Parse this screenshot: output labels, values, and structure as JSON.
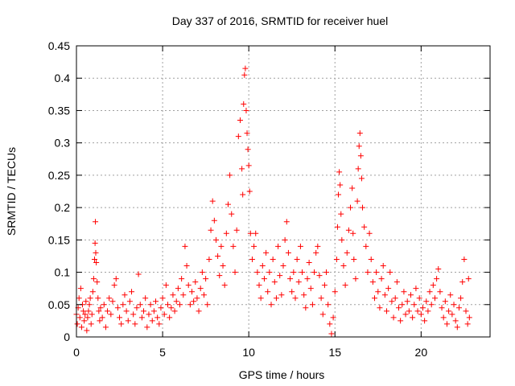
{
  "chart_data": {
    "type": "scatter",
    "title": "Day 337 of 2016, SRMTID for receiver huel",
    "xlabel": "GPS time / hours",
    "ylabel": "SRMTID / TECUs",
    "xlim": [
      0,
      24
    ],
    "ylim": [
      0,
      0.45
    ],
    "xticks": [
      0,
      5,
      10,
      15,
      20
    ],
    "yticks": [
      0,
      0.05,
      0.1,
      0.15,
      0.2,
      0.25,
      0.3,
      0.35,
      0.4,
      0.45
    ],
    "xtick_labels": [
      "0",
      "5",
      "10",
      "15",
      "20"
    ],
    "ytick_labels": [
      "0",
      "0.05",
      "0.1",
      "0.15",
      "0.2",
      "0.25",
      "0.3",
      "0.35",
      "0.4",
      "0.45"
    ],
    "grid": true,
    "marker": "+",
    "color": "#ff0000",
    "series": [
      {
        "name": "SRMTID",
        "points": [
          [
            0.0,
            0.035
          ],
          [
            0.05,
            0.02
          ],
          [
            0.1,
            0.045
          ],
          [
            0.15,
            0.06
          ],
          [
            0.2,
            0.03
          ],
          [
            0.25,
            0.075
          ],
          [
            0.3,
            0.015
          ],
          [
            0.35,
            0.05
          ],
          [
            0.4,
            0.04
          ],
          [
            0.45,
            0.025
          ],
          [
            0.5,
            0.035
          ],
          [
            0.55,
            0.055
          ],
          [
            0.6,
            0.01
          ],
          [
            0.65,
            0.03
          ],
          [
            0.7,
            0.04
          ],
          [
            0.75,
            0.05
          ],
          [
            0.8,
            0.06
          ],
          [
            0.85,
            0.02
          ],
          [
            0.9,
            0.035
          ],
          [
            0.95,
            0.07
          ],
          [
            1.0,
            0.09
          ],
          [
            1.05,
            0.12
          ],
          [
            1.08,
            0.145
          ],
          [
            1.1,
            0.178
          ],
          [
            1.12,
            0.13
          ],
          [
            1.15,
            0.115
          ],
          [
            1.2,
            0.085
          ],
          [
            1.25,
            0.06
          ],
          [
            1.3,
            0.04
          ],
          [
            1.35,
            0.025
          ],
          [
            1.4,
            0.045
          ],
          [
            1.5,
            0.03
          ],
          [
            1.6,
            0.05
          ],
          [
            1.7,
            0.015
          ],
          [
            1.8,
            0.04
          ],
          [
            1.9,
            0.06
          ],
          [
            2.0,
            0.035
          ],
          [
            2.1,
            0.055
          ],
          [
            2.2,
            0.08
          ],
          [
            2.3,
            0.09
          ],
          [
            2.4,
            0.045
          ],
          [
            2.5,
            0.03
          ],
          [
            2.6,
            0.02
          ],
          [
            2.7,
            0.05
          ],
          [
            2.8,
            0.065
          ],
          [
            2.9,
            0.04
          ],
          [
            3.0,
            0.025
          ],
          [
            3.1,
            0.055
          ],
          [
            3.2,
            0.07
          ],
          [
            3.3,
            0.035
          ],
          [
            3.4,
            0.02
          ],
          [
            3.5,
            0.045
          ],
          [
            3.6,
            0.097
          ],
          [
            3.7,
            0.05
          ],
          [
            3.8,
            0.03
          ],
          [
            3.9,
            0.04
          ],
          [
            4.0,
            0.06
          ],
          [
            4.1,
            0.015
          ],
          [
            4.2,
            0.035
          ],
          [
            4.3,
            0.05
          ],
          [
            4.4,
            0.025
          ],
          [
            4.5,
            0.04
          ],
          [
            4.6,
            0.055
          ],
          [
            4.7,
            0.03
          ],
          [
            4.8,
            0.02
          ],
          [
            4.9,
            0.045
          ],
          [
            5.0,
            0.06
          ],
          [
            5.1,
            0.035
          ],
          [
            5.2,
            0.08
          ],
          [
            5.3,
            0.05
          ],
          [
            5.4,
            0.03
          ],
          [
            5.5,
            0.045
          ],
          [
            5.6,
            0.065
          ],
          [
            5.7,
            0.04
          ],
          [
            5.8,
            0.055
          ],
          [
            5.9,
            0.075
          ],
          [
            6.0,
            0.05
          ],
          [
            6.1,
            0.09
          ],
          [
            6.2,
            0.065
          ],
          [
            6.3,
            0.14
          ],
          [
            6.4,
            0.11
          ],
          [
            6.5,
            0.08
          ],
          [
            6.6,
            0.05
          ],
          [
            6.7,
            0.07
          ],
          [
            6.8,
            0.055
          ],
          [
            6.9,
            0.085
          ],
          [
            7.0,
            0.06
          ],
          [
            7.1,
            0.04
          ],
          [
            7.2,
            0.075
          ],
          [
            7.3,
            0.1
          ],
          [
            7.4,
            0.065
          ],
          [
            7.5,
            0.09
          ],
          [
            7.6,
            0.05
          ],
          [
            7.7,
            0.12
          ],
          [
            7.8,
            0.165
          ],
          [
            7.9,
            0.21
          ],
          [
            8.0,
            0.18
          ],
          [
            8.1,
            0.15
          ],
          [
            8.2,
            0.125
          ],
          [
            8.3,
            0.095
          ],
          [
            8.4,
            0.14
          ],
          [
            8.5,
            0.11
          ],
          [
            8.6,
            0.08
          ],
          [
            8.7,
            0.16
          ],
          [
            8.8,
            0.205
          ],
          [
            8.9,
            0.25
          ],
          [
            9.0,
            0.19
          ],
          [
            9.1,
            0.14
          ],
          [
            9.2,
            0.1
          ],
          [
            9.3,
            0.165
          ],
          [
            9.4,
            0.31
          ],
          [
            9.5,
            0.335
          ],
          [
            9.6,
            0.26
          ],
          [
            9.65,
            0.22
          ],
          [
            9.7,
            0.36
          ],
          [
            9.75,
            0.405
          ],
          [
            9.8,
            0.415
          ],
          [
            9.85,
            0.35
          ],
          [
            9.9,
            0.315
          ],
          [
            9.95,
            0.29
          ],
          [
            10.0,
            0.265
          ],
          [
            10.05,
            0.225
          ],
          [
            10.1,
            0.16
          ],
          [
            10.2,
            0.12
          ],
          [
            10.3,
            0.14
          ],
          [
            10.4,
            0.16
          ],
          [
            10.5,
            0.1
          ],
          [
            10.6,
            0.08
          ],
          [
            10.7,
            0.06
          ],
          [
            10.8,
            0.11
          ],
          [
            10.9,
            0.09
          ],
          [
            11.0,
            0.13
          ],
          [
            11.1,
            0.07
          ],
          [
            11.2,
            0.1
          ],
          [
            11.3,
            0.05
          ],
          [
            11.4,
            0.12
          ],
          [
            11.5,
            0.085
          ],
          [
            11.6,
            0.06
          ],
          [
            11.7,
            0.14
          ],
          [
            11.8,
            0.095
          ],
          [
            11.9,
            0.065
          ],
          [
            12.0,
            0.11
          ],
          [
            12.1,
            0.15
          ],
          [
            12.2,
            0.178
          ],
          [
            12.3,
            0.13
          ],
          [
            12.4,
            0.09
          ],
          [
            12.5,
            0.07
          ],
          [
            12.6,
            0.1
          ],
          [
            12.7,
            0.06
          ],
          [
            12.8,
            0.12
          ],
          [
            12.9,
            0.085
          ],
          [
            13.0,
            0.14
          ],
          [
            13.1,
            0.1
          ],
          [
            13.2,
            0.065
          ],
          [
            13.3,
            0.045
          ],
          [
            13.4,
            0.09
          ],
          [
            13.5,
            0.115
          ],
          [
            13.6,
            0.075
          ],
          [
            13.7,
            0.05
          ],
          [
            13.8,
            0.1
          ],
          [
            13.9,
            0.13
          ],
          [
            14.0,
            0.14
          ],
          [
            14.1,
            0.095
          ],
          [
            14.2,
            0.06
          ],
          [
            14.3,
            0.035
          ],
          [
            14.4,
            0.08
          ],
          [
            14.5,
            0.1
          ],
          [
            14.6,
            0.05
          ],
          [
            14.7,
            0.02
          ],
          [
            14.8,
            0.005
          ],
          [
            14.9,
            0.03
          ],
          [
            15.0,
            0.07
          ],
          [
            15.1,
            0.12
          ],
          [
            15.15,
            0.17
          ],
          [
            15.2,
            0.22
          ],
          [
            15.25,
            0.255
          ],
          [
            15.3,
            0.235
          ],
          [
            15.35,
            0.19
          ],
          [
            15.4,
            0.15
          ],
          [
            15.5,
            0.11
          ],
          [
            15.6,
            0.08
          ],
          [
            15.7,
            0.13
          ],
          [
            15.8,
            0.165
          ],
          [
            15.9,
            0.2
          ],
          [
            16.0,
            0.23
          ],
          [
            16.05,
            0.16
          ],
          [
            16.1,
            0.12
          ],
          [
            16.2,
            0.09
          ],
          [
            16.3,
            0.21
          ],
          [
            16.35,
            0.26
          ],
          [
            16.4,
            0.295
          ],
          [
            16.45,
            0.315
          ],
          [
            16.5,
            0.28
          ],
          [
            16.55,
            0.245
          ],
          [
            16.6,
            0.2
          ],
          [
            16.7,
            0.17
          ],
          [
            16.8,
            0.14
          ],
          [
            16.9,
            0.1
          ],
          [
            17.0,
            0.16
          ],
          [
            17.1,
            0.12
          ],
          [
            17.2,
            0.085
          ],
          [
            17.3,
            0.06
          ],
          [
            17.4,
            0.1
          ],
          [
            17.5,
            0.07
          ],
          [
            17.6,
            0.045
          ],
          [
            17.7,
            0.09
          ],
          [
            17.8,
            0.11
          ],
          [
            17.9,
            0.065
          ],
          [
            18.0,
            0.04
          ],
          [
            18.1,
            0.075
          ],
          [
            18.2,
            0.1
          ],
          [
            18.3,
            0.055
          ],
          [
            18.4,
            0.03
          ],
          [
            18.5,
            0.06
          ],
          [
            18.6,
            0.085
          ],
          [
            18.7,
            0.045
          ],
          [
            18.8,
            0.025
          ],
          [
            18.9,
            0.05
          ],
          [
            19.0,
            0.07
          ],
          [
            19.1,
            0.035
          ],
          [
            19.2,
            0.055
          ],
          [
            19.3,
            0.04
          ],
          [
            19.4,
            0.065
          ],
          [
            19.5,
            0.03
          ],
          [
            19.6,
            0.05
          ],
          [
            19.7,
            0.075
          ],
          [
            19.8,
            0.04
          ],
          [
            19.9,
            0.06
          ],
          [
            20.0,
            0.035
          ],
          [
            20.1,
            0.045
          ],
          [
            20.2,
            0.025
          ],
          [
            20.3,
            0.055
          ],
          [
            20.4,
            0.04
          ],
          [
            20.5,
            0.07
          ],
          [
            20.6,
            0.05
          ],
          [
            20.7,
            0.08
          ],
          [
            20.8,
            0.06
          ],
          [
            20.9,
            0.09
          ],
          [
            21.0,
            0.105
          ],
          [
            21.1,
            0.07
          ],
          [
            21.2,
            0.045
          ],
          [
            21.3,
            0.03
          ],
          [
            21.4,
            0.055
          ],
          [
            21.5,
            0.02
          ],
          [
            21.6,
            0.04
          ],
          [
            21.7,
            0.065
          ],
          [
            21.8,
            0.035
          ],
          [
            21.9,
            0.05
          ],
          [
            22.0,
            0.025
          ],
          [
            22.1,
            0.015
          ],
          [
            22.2,
            0.045
          ],
          [
            22.3,
            0.06
          ],
          [
            22.4,
            0.085
          ],
          [
            22.5,
            0.12
          ],
          [
            22.6,
            0.04
          ],
          [
            22.7,
            0.02
          ],
          [
            22.75,
            0.09
          ],
          [
            22.8,
            0.03
          ]
        ]
      }
    ]
  }
}
